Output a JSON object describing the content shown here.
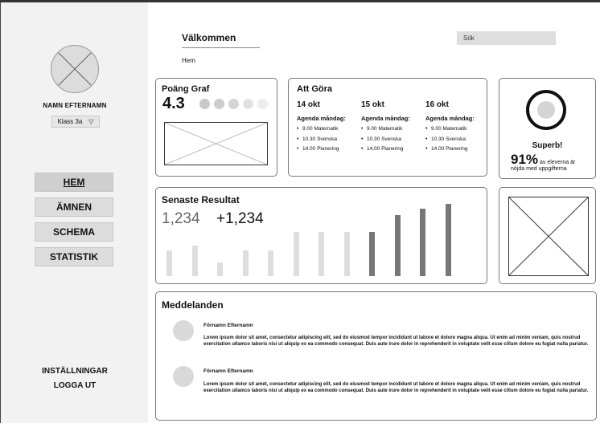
{
  "sidebar": {
    "user_name": "NAMN EFTERNAMN",
    "class_select": "Klass 3a",
    "nav": [
      "HEM",
      "ÄMNEN",
      "SCHEMA",
      "STATISTIK"
    ],
    "settings": "INSTÄLLNINGAR",
    "logout": "LOGGA UT"
  },
  "header": {
    "title": "Välkommen",
    "breadcrumb": "Hem",
    "search_placeholder": "Sök"
  },
  "points": {
    "title": "Poäng Graf",
    "value": "4.3",
    "dot_colors": [
      "#c8c8c8",
      "#cdcdcd",
      "#d4d4d4",
      "#e2e2e2",
      "#ececec"
    ]
  },
  "todo": {
    "title": "Att Göra",
    "days": [
      {
        "date": "14 okt",
        "heading": "Agenda måndag:",
        "items": [
          "9.00  Matematik",
          "10.30 Svenska",
          "14.00 Planering"
        ]
      },
      {
        "date": "15 okt",
        "heading": "Agenda måndag:",
        "items": [
          "9.00  Matematik",
          "10.30 Svenska",
          "14.00 Planering"
        ]
      },
      {
        "date": "16 okt",
        "heading": "Agenda måndag:",
        "items": [
          "9.00  Matematik",
          "10.30 Svenska",
          "14.00 Planering"
        ]
      }
    ]
  },
  "satisfaction": {
    "label": "Superb!",
    "percent": "91%",
    "text_line1": "av eleverna är",
    "text_line2": "nöjda med uppgifterna"
  },
  "results": {
    "title": "Senaste Resultat",
    "stat_primary": "1,234",
    "stat_change": "+1,234"
  },
  "messages": {
    "title": "Meddelanden",
    "items": [
      {
        "name": "Förnamn Efternamn",
        "body": "Lorem ipsum dolor sit amet, consectetur adipiscing elit, sed do eiusmod tempor incididunt ut labore et dolore magna aliqua. Ut enim ad minim veniam, quis nostrud exercitation ullamco laboris nisi ut aliquip ex ea commodo consequat. Duis aute irure dolor in reprehenderit in voluptate velit esse cillum dolore eu fugiat nulla pariatur."
      },
      {
        "name": "Förnamn Efternamn",
        "body": "Lorem ipsum dolor sit amet, consectetur adipiscing elit, sed do eiusmod tempor incididunt ut labore et dolore magna aliqua. Ut enim ad minim veniam, quis nostrud exercitation ullamco laboris nisi ut aliquip ex ea commodo consequat. Duis aute irure dolor in reprehenderit in voluptate velit esse cillum dolore eu fugiat nulla pariatur."
      }
    ]
  },
  "chart_data": {
    "type": "bar",
    "values": [
      32,
      38,
      17,
      32,
      32,
      55,
      55,
      55,
      55,
      76,
      84,
      90
    ],
    "colors": [
      "#dedede",
      "#dedede",
      "#dedede",
      "#dedede",
      "#dedede",
      "#dedede",
      "#dedede",
      "#dedede",
      "#777777",
      "#777777",
      "#777777",
      "#777777"
    ],
    "ylim": [
      0,
      100
    ]
  },
  "icons": {
    "avatar": "avatar-placeholder-icon",
    "class_dropdown": "triangle-down-icon",
    "image_placeholder": "image-placeholder-icon"
  }
}
